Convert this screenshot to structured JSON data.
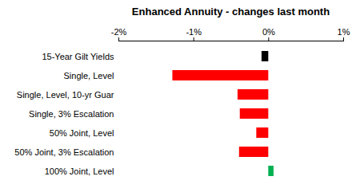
{
  "chart_data": {
    "type": "bar",
    "orientation": "horizontal",
    "title": "Enhanced Annuity - changes last month",
    "categories": [
      "15-Year Gilt Yields",
      "Single, Level",
      "Single, Level, 10-yr Guar",
      "Single, 3% Escalation",
      "50% Joint, Level",
      "50% Joint, 3% Escalation",
      "100% Joint, Level"
    ],
    "values": [
      -0.09,
      -1.28,
      -0.41,
      -0.38,
      -0.16,
      -0.39,
      0.07
    ],
    "colors": [
      "#000000",
      "#ff0000",
      "#ff0000",
      "#ff0000",
      "#ff0000",
      "#ff0000",
      "#00b050"
    ],
    "xlim": [
      -2,
      1
    ],
    "xticks": [
      {
        "value": -2,
        "label": "-2%"
      },
      {
        "value": -1,
        "label": "-1%"
      },
      {
        "value": 0,
        "label": "0%"
      },
      {
        "value": 1,
        "label": "1%"
      }
    ],
    "grid": false
  }
}
